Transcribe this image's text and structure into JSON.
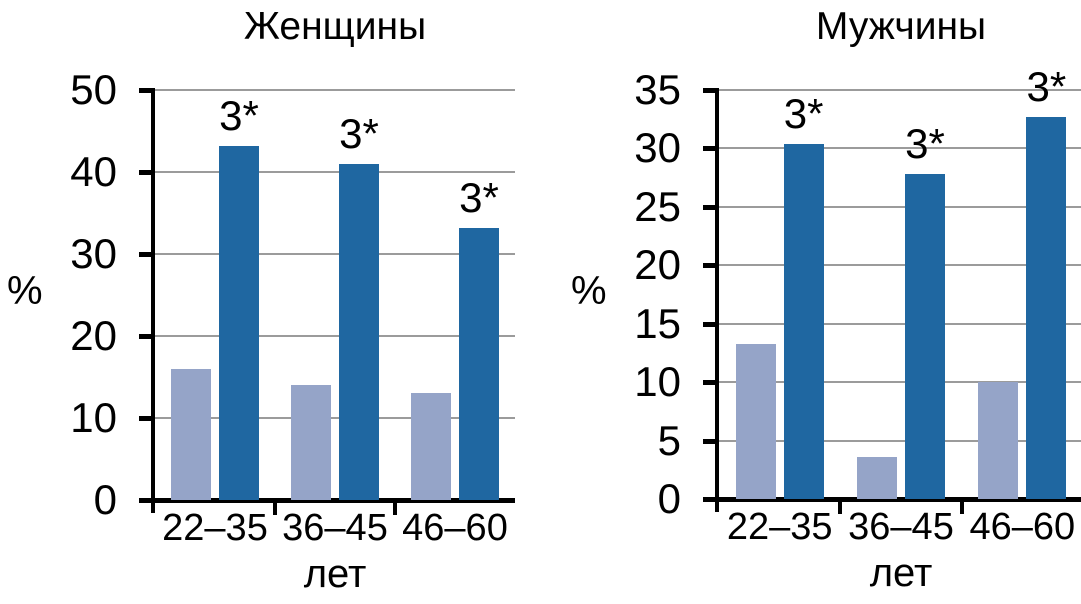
{
  "chart_data": [
    {
      "type": "bar",
      "title": "Женщины",
      "ylabel": "%",
      "xlabel": "лет",
      "categories": [
        "22–35",
        "36–45",
        "46–60"
      ],
      "series": [
        {
          "name": "light-blue-series",
          "color": "#95a4c8",
          "values": [
            16,
            14,
            13
          ]
        },
        {
          "name": "dark-blue-series",
          "color": "#1f67a1",
          "values": [
            43.2,
            41,
            33.2
          ],
          "bar_labels": [
            "3*",
            "3*",
            "3*"
          ]
        }
      ],
      "ylim": [
        0,
        50
      ],
      "yticks": [
        0,
        10,
        20,
        30,
        40,
        50
      ],
      "grid": true,
      "legend": "none"
    },
    {
      "type": "bar",
      "title": "Мужчины",
      "ylabel": "%",
      "xlabel": "лет",
      "categories": [
        "22–35",
        "36–45",
        "46–60"
      ],
      "series": [
        {
          "name": "light-blue-series",
          "color": "#95a4c8",
          "values": [
            13.3,
            3.6,
            10
          ]
        },
        {
          "name": "dark-blue-series",
          "color": "#1f67a1",
          "values": [
            30.4,
            27.8,
            32.7
          ],
          "bar_labels": [
            "3*",
            "3*",
            "3*"
          ]
        }
      ],
      "ylim": [
        0,
        35
      ],
      "yticks": [
        0,
        5,
        10,
        15,
        20,
        25,
        30,
        35
      ],
      "grid": true,
      "legend": "none"
    }
  ],
  "colors": {
    "light_bar": "#95a4c8",
    "dark_bar": "#1f67a1",
    "gridline": "#9b9b9b",
    "axis": "#000000",
    "background": "#ffffff"
  }
}
